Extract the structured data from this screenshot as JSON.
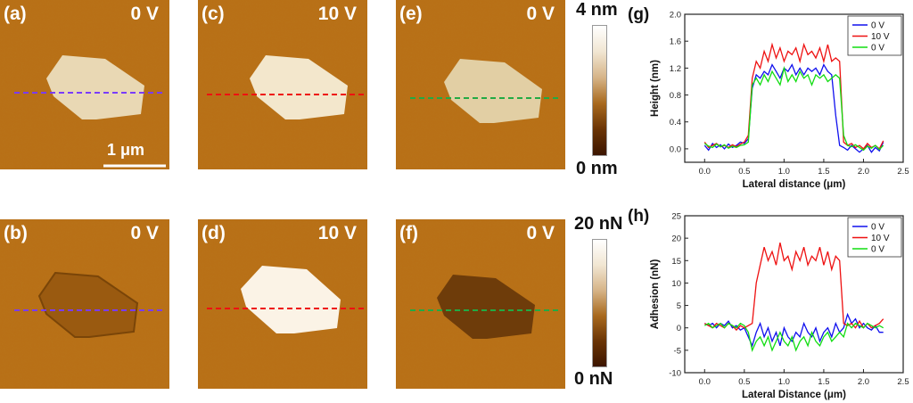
{
  "panels": [
    {
      "id": "a",
      "label": "(a)",
      "voltage": "0 V"
    },
    {
      "id": "b",
      "label": "(b)",
      "voltage": "0 V"
    },
    {
      "id": "c",
      "label": "(c)",
      "voltage": "10 V"
    },
    {
      "id": "d",
      "label": "(d)",
      "voltage": "10 V"
    },
    {
      "id": "e",
      "label": "(e)",
      "voltage": "0 V"
    },
    {
      "id": "f",
      "label": "(f)",
      "voltage": "0 V"
    }
  ],
  "scale_bar": "1 μm",
  "colorbar_height": {
    "top": "4 nm",
    "bottom": "0 nm"
  },
  "colorbar_adhesion": {
    "top": "20 nN",
    "bottom": "0 nN"
  },
  "colors": {
    "blue": "#1010ee",
    "red": "#ee1111",
    "green": "#11dd11",
    "purple": "#7a3cff",
    "afm_bg": "#b86f16"
  },
  "chart_data": [
    {
      "panel_label": "(g)",
      "type": "line",
      "xlabel": "Lateral distance (μm)",
      "ylabel": "Height (nm)",
      "xlim": [
        -0.25,
        2.5
      ],
      "ylim": [
        -0.2,
        2.0
      ],
      "xticks": [
        "0.0",
        "0.5",
        "1.0",
        "1.5",
        "2.0",
        "2.5"
      ],
      "yticks": [
        "0.0",
        "0.4",
        "0.8",
        "1.2",
        "1.6",
        "2.0"
      ],
      "legend_position": "top-right",
      "series": [
        {
          "name": "0 V",
          "color": "#1010ee",
          "x": [
            0.0,
            0.05,
            0.1,
            0.15,
            0.2,
            0.25,
            0.3,
            0.35,
            0.4,
            0.45,
            0.5,
            0.55,
            0.6,
            0.65,
            0.7,
            0.75,
            0.8,
            0.85,
            0.9,
            0.95,
            1.0,
            1.05,
            1.1,
            1.15,
            1.2,
            1.25,
            1.3,
            1.35,
            1.4,
            1.45,
            1.5,
            1.55,
            1.6,
            1.65,
            1.7,
            1.75,
            1.8,
            1.85,
            1.9,
            1.95,
            2.0,
            2.05,
            2.1,
            2.15,
            2.2,
            2.25
          ],
          "y": [
            0.05,
            -0.02,
            0.08,
            0.02,
            0.06,
            0.0,
            0.07,
            0.02,
            0.05,
            0.1,
            0.08,
            0.15,
            0.9,
            1.1,
            1.05,
            1.15,
            1.1,
            1.25,
            1.15,
            1.05,
            1.2,
            1.15,
            1.25,
            1.1,
            1.2,
            1.1,
            1.2,
            1.15,
            1.2,
            1.1,
            1.25,
            1.15,
            1.1,
            0.5,
            0.05,
            0.02,
            -0.02,
            0.05,
            0.0,
            -0.05,
            0.0,
            0.05,
            -0.05,
            0.02,
            -0.03,
            0.1
          ]
        },
        {
          "name": "10 V",
          "color": "#ee1111",
          "x": [
            0.0,
            0.05,
            0.1,
            0.15,
            0.2,
            0.25,
            0.3,
            0.35,
            0.4,
            0.45,
            0.5,
            0.55,
            0.6,
            0.65,
            0.7,
            0.75,
            0.8,
            0.85,
            0.9,
            0.95,
            1.0,
            1.05,
            1.1,
            1.15,
            1.2,
            1.25,
            1.3,
            1.35,
            1.4,
            1.45,
            1.5,
            1.55,
            1.6,
            1.65,
            1.7,
            1.75,
            1.8,
            1.85,
            1.9,
            1.95,
            2.0,
            2.05,
            2.1,
            2.15,
            2.2,
            2.25
          ],
          "y": [
            0.1,
            0.02,
            0.05,
            0.08,
            0.03,
            0.05,
            0.02,
            0.06,
            0.03,
            0.07,
            0.1,
            0.2,
            1.05,
            1.3,
            1.2,
            1.45,
            1.3,
            1.55,
            1.35,
            1.5,
            1.3,
            1.45,
            1.4,
            1.5,
            1.3,
            1.55,
            1.4,
            1.45,
            1.35,
            1.5,
            1.3,
            1.55,
            1.3,
            1.35,
            1.3,
            0.1,
            0.05,
            0.08,
            0.02,
            0.05,
            0.0,
            0.08,
            0.02,
            0.05,
            0.0,
            0.12
          ]
        },
        {
          "name": "0 V",
          "color": "#11dd11",
          "x": [
            0.0,
            0.05,
            0.1,
            0.15,
            0.2,
            0.25,
            0.3,
            0.35,
            0.4,
            0.45,
            0.5,
            0.55,
            0.6,
            0.65,
            0.7,
            0.75,
            0.8,
            0.85,
            0.9,
            0.95,
            1.0,
            1.05,
            1.1,
            1.15,
            1.2,
            1.25,
            1.3,
            1.35,
            1.4,
            1.45,
            1.5,
            1.55,
            1.6,
            1.65,
            1.7,
            1.75,
            1.8,
            1.85,
            1.9,
            1.95,
            2.0,
            2.05,
            2.1,
            2.15,
            2.2,
            2.25
          ],
          "y": [
            0.08,
            0.04,
            0.02,
            0.07,
            0.03,
            0.06,
            0.01,
            0.04,
            0.02,
            0.05,
            0.06,
            0.1,
            0.95,
            1.05,
            0.95,
            1.1,
            1.0,
            1.15,
            1.05,
            0.95,
            1.2,
            1.0,
            1.1,
            1.0,
            1.15,
            1.05,
            1.1,
            0.95,
            1.1,
            1.05,
            1.1,
            1.0,
            1.05,
            1.1,
            1.05,
            0.2,
            0.05,
            0.03,
            0.06,
            0.02,
            -0.02,
            0.04,
            0.01,
            0.05,
            -0.01,
            0.05
          ]
        }
      ]
    },
    {
      "panel_label": "(h)",
      "type": "line",
      "xlabel": "Lateral Distance (μm)",
      "ylabel": "Adhesion (nN)",
      "xlim": [
        -0.25,
        2.5
      ],
      "ylim": [
        -10,
        25
      ],
      "xticks": [
        "0.0",
        "0.5",
        "1.0",
        "1.5",
        "2.0",
        "2.5"
      ],
      "yticks": [
        "-10",
        "-5",
        "0",
        "5",
        "10",
        "15",
        "20",
        "25"
      ],
      "legend_position": "top-right",
      "series": [
        {
          "name": "0 V",
          "color": "#1010ee",
          "x": [
            0.0,
            0.05,
            0.1,
            0.15,
            0.2,
            0.25,
            0.3,
            0.35,
            0.4,
            0.45,
            0.5,
            0.55,
            0.6,
            0.65,
            0.7,
            0.75,
            0.8,
            0.85,
            0.9,
            0.95,
            1.0,
            1.05,
            1.1,
            1.15,
            1.2,
            1.25,
            1.3,
            1.35,
            1.4,
            1.45,
            1.5,
            1.55,
            1.6,
            1.65,
            1.7,
            1.75,
            1.8,
            1.85,
            1.9,
            1.95,
            2.0,
            2.05,
            2.1,
            2.15,
            2.2,
            2.25
          ],
          "y": [
            1,
            0.5,
            1,
            0,
            1,
            0.5,
            1.5,
            0,
            0.5,
            -0.5,
            0,
            -2,
            -4,
            -1,
            1,
            -2,
            0,
            -3,
            -1,
            -4,
            0,
            -2,
            -3,
            -1,
            -2,
            1,
            -1,
            -2,
            0,
            -3,
            -1,
            0,
            -2,
            1,
            -1,
            0,
            3,
            1,
            2,
            0,
            1,
            0,
            -0.5,
            0.5,
            -1,
            -1
          ]
        },
        {
          "name": "10 V",
          "color": "#ee1111",
          "x": [
            0.0,
            0.05,
            0.1,
            0.15,
            0.2,
            0.25,
            0.3,
            0.35,
            0.4,
            0.45,
            0.5,
            0.55,
            0.6,
            0.65,
            0.7,
            0.75,
            0.8,
            0.85,
            0.9,
            0.95,
            1.0,
            1.05,
            1.1,
            1.15,
            1.2,
            1.25,
            1.3,
            1.35,
            1.4,
            1.45,
            1.5,
            1.55,
            1.6,
            1.65,
            1.7,
            1.75,
            1.8,
            1.85,
            1.9,
            1.95,
            2.0,
            2.05,
            2.1,
            2.15,
            2.2,
            2.25
          ],
          "y": [
            1,
            0.5,
            0,
            1,
            0.5,
            0,
            1,
            0.5,
            -0.5,
            0.5,
            0,
            0.5,
            1,
            10,
            14,
            18,
            15,
            17,
            14,
            19,
            15,
            16,
            13,
            17,
            15,
            18,
            14,
            16,
            15,
            18,
            14,
            17,
            13,
            16,
            15,
            1,
            0.5,
            1,
            0,
            1.5,
            0,
            1,
            0,
            0.5,
            1,
            2
          ]
        },
        {
          "name": "0 V",
          "color": "#11dd11",
          "x": [
            0.0,
            0.05,
            0.1,
            0.15,
            0.2,
            0.25,
            0.3,
            0.35,
            0.4,
            0.45,
            0.5,
            0.55,
            0.6,
            0.65,
            0.7,
            0.75,
            0.8,
            0.85,
            0.9,
            0.95,
            1.0,
            1.05,
            1.1,
            1.15,
            1.2,
            1.25,
            1.3,
            1.35,
            1.4,
            1.45,
            1.5,
            1.55,
            1.6,
            1.65,
            1.7,
            1.75,
            1.8,
            1.85,
            1.9,
            1.95,
            2.0,
            2.05,
            2.1,
            2.15,
            2.2,
            2.25
          ],
          "y": [
            0.5,
            1,
            0,
            0.5,
            1,
            0,
            1,
            0.5,
            0,
            1,
            0.5,
            -1,
            -5,
            -3,
            -2,
            -4,
            -2,
            -5,
            -3,
            -1,
            -3,
            -4,
            -2,
            -5,
            -3,
            -2,
            -4,
            -1,
            -3,
            -4,
            -2,
            -1,
            -3,
            -2,
            -1,
            -2,
            1,
            0,
            1,
            0.5,
            0,
            1,
            0.5,
            0,
            0.5,
            0
          ]
        }
      ]
    }
  ]
}
